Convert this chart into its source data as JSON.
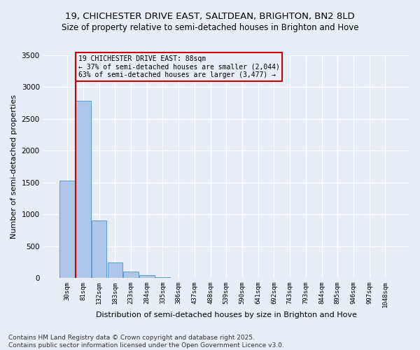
{
  "title": "19, CHICHESTER DRIVE EAST, SALTDEAN, BRIGHTON, BN2 8LD",
  "subtitle": "Size of property relative to semi-detached houses in Brighton and Hove",
  "xlabel": "Distribution of semi-detached houses by size in Brighton and Hove",
  "ylabel": "Number of semi-detached properties",
  "categories": [
    "30sqm",
    "81sqm",
    "132sqm",
    "183sqm",
    "233sqm",
    "284sqm",
    "335sqm",
    "386sqm",
    "437sqm",
    "488sqm",
    "539sqm",
    "590sqm",
    "641sqm",
    "692sqm",
    "743sqm",
    "793sqm",
    "844sqm",
    "895sqm",
    "946sqm",
    "997sqm",
    "1048sqm"
  ],
  "values": [
    1530,
    2780,
    900,
    240,
    100,
    40,
    15,
    0,
    0,
    0,
    0,
    0,
    0,
    0,
    0,
    0,
    0,
    0,
    0,
    0,
    0
  ],
  "bar_color": "#aec6e8",
  "bar_edge_color": "#5b9bd5",
  "property_line_color": "#cc0000",
  "annotation_text": "19 CHICHESTER DRIVE EAST: 88sqm\n← 37% of semi-detached houses are smaller (2,044)\n63% of semi-detached houses are larger (3,477) →",
  "annotation_box_color": "#cc0000",
  "ylim": [
    0,
    3500
  ],
  "yticks": [
    0,
    500,
    1000,
    1500,
    2000,
    2500,
    3000,
    3500
  ],
  "background_color": "#e8eef8",
  "grid_color": "#ffffff",
  "footer": "Contains HM Land Registry data © Crown copyright and database right 2025.\nContains public sector information licensed under the Open Government Licence v3.0.",
  "title_fontsize": 9.5,
  "subtitle_fontsize": 8.5,
  "xlabel_fontsize": 8,
  "ylabel_fontsize": 8,
  "footer_fontsize": 6.5,
  "annotation_fontsize": 7
}
